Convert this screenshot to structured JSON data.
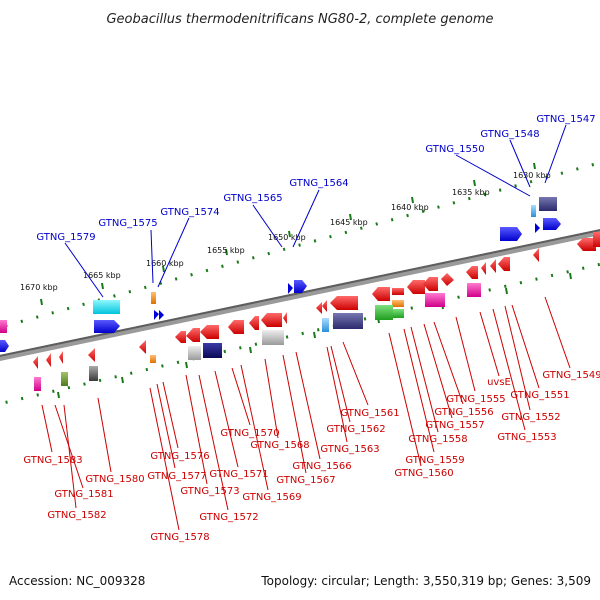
{
  "title": "Geobacillus thermodenitrificans NG80-2, complete genome",
  "footer": {
    "accession": "Accession: NC_009328",
    "summary": "Topology: circular; Length: 3,550,319 bp; Genes: 3,509"
  },
  "colors": {
    "top_strand_label": "#0000cc",
    "bottom_strand_label": "#cc0000",
    "backbone": "#7a7a7a",
    "tick_mark": "#1a7a1a"
  },
  "top_ruler_ticks": [
    {
      "label": "1670 kbp"
    },
    {
      "label": "1665 kbp"
    },
    {
      "label": "1660 kbp"
    },
    {
      "label": "1655 kbp"
    },
    {
      "label": "1650 kbp"
    },
    {
      "label": "1645 kbp"
    },
    {
      "label": "1640 kbp"
    },
    {
      "label": "1635 kbp"
    },
    {
      "label": "1630 kbp"
    }
  ],
  "top_genes": [
    {
      "name": "GTNG_1579"
    },
    {
      "name": "GTNG_1575"
    },
    {
      "name": "GTNG_1574"
    },
    {
      "name": "GTNG_1565"
    },
    {
      "name": "GTNG_1564"
    },
    {
      "name": "GTNG_1550"
    },
    {
      "name": "GTNG_1548"
    },
    {
      "name": "GTNG_1547"
    }
  ],
  "bottom_genes": [
    {
      "name": "GTNG_1583"
    },
    {
      "name": "GTNG_1581"
    },
    {
      "name": "GTNG_1582"
    },
    {
      "name": "GTNG_1580"
    },
    {
      "name": "GTNG_1576"
    },
    {
      "name": "GTNG_1577"
    },
    {
      "name": "GTNG_1578"
    },
    {
      "name": "GTNG_1573"
    },
    {
      "name": "GTNG_1572"
    },
    {
      "name": "GTNG_1571"
    },
    {
      "name": "GTNG_1570"
    },
    {
      "name": "GTNG_1569"
    },
    {
      "name": "GTNG_1568"
    },
    {
      "name": "GTNG_1567"
    },
    {
      "name": "GTNG_1566"
    },
    {
      "name": "GTNG_1563"
    },
    {
      "name": "GTNG_1562"
    },
    {
      "name": "GTNG_1561"
    },
    {
      "name": "GTNG_1560"
    },
    {
      "name": "GTNG_1559"
    },
    {
      "name": "GTNG_1558"
    },
    {
      "name": "GTNG_1557"
    },
    {
      "name": "GTNG_1556"
    },
    {
      "name": "GTNG_1555"
    },
    {
      "name": "uvsE"
    },
    {
      "name": "GTNG_1553"
    },
    {
      "name": "GTNG_1552"
    },
    {
      "name": "GTNG_1551"
    },
    {
      "name": "GTNG_1549"
    }
  ]
}
